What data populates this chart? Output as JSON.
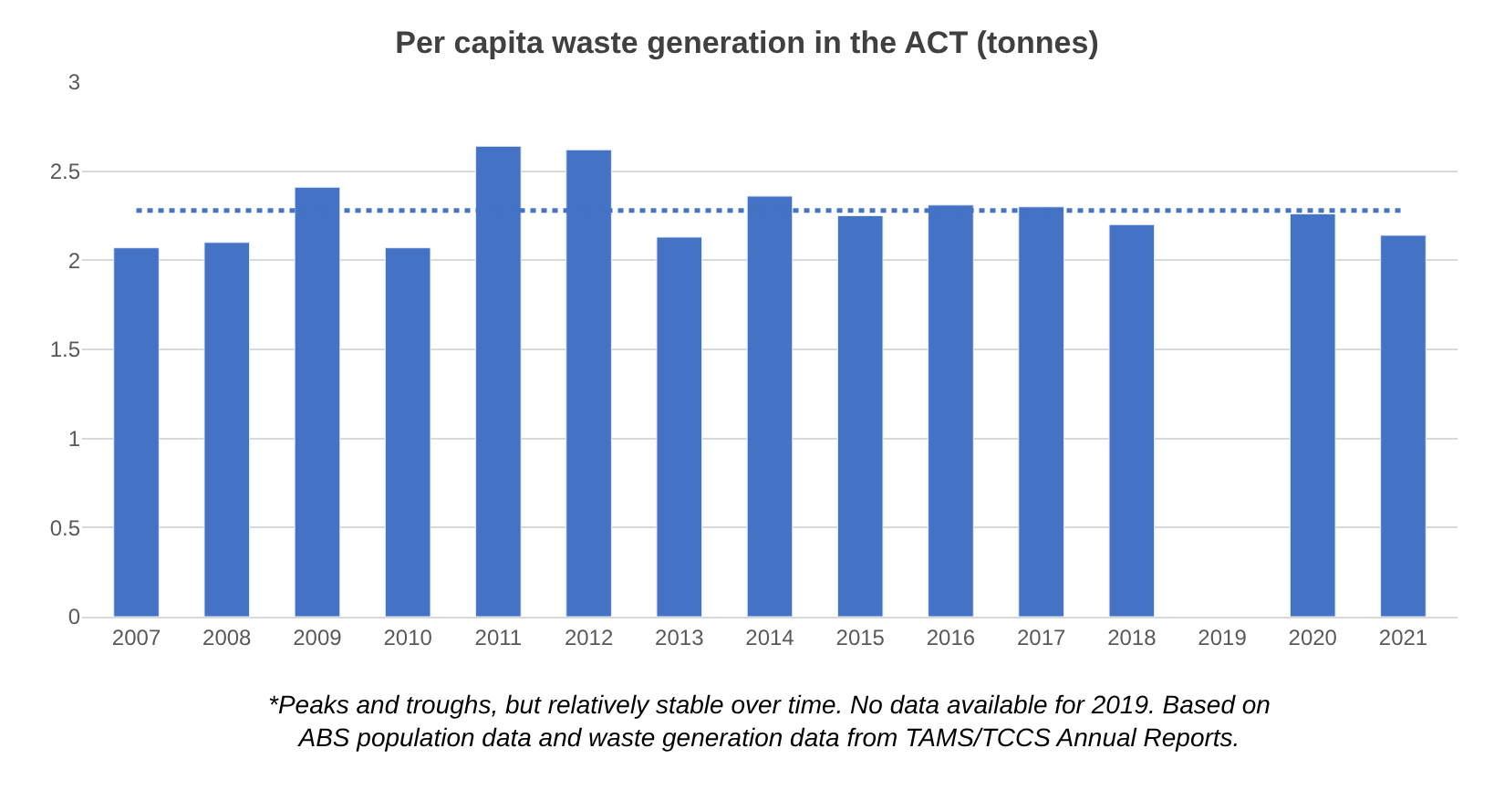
{
  "chart_data": {
    "type": "bar",
    "title": "Per capita waste generation in the ACT (tonnes)",
    "categories": [
      "2007",
      "2008",
      "2009",
      "2010",
      "2011",
      "2012",
      "2013",
      "2014",
      "2015",
      "2016",
      "2017",
      "2018",
      "2019",
      "2020",
      "2021"
    ],
    "values": [
      2.07,
      2.1,
      2.41,
      2.07,
      2.64,
      2.62,
      2.13,
      2.36,
      2.25,
      2.31,
      2.3,
      2.2,
      null,
      2.26,
      2.14
    ],
    "color": "#4472c4",
    "ylim": [
      0,
      3
    ],
    "yticks": [
      0,
      0.5,
      1,
      1.5,
      2,
      2.5,
      3
    ],
    "grid": "y",
    "ref_lines": [
      {
        "axis": "y",
        "value": 2.28,
        "color": "#4472c4",
        "line_style": "dotted"
      }
    ],
    "annotations": [
      "*Peaks and troughs, but relatively stable over time. No data available for 2019. Based on\nABS population data and waste generation data from TAMS/TCCS Annual Reports."
    ]
  }
}
